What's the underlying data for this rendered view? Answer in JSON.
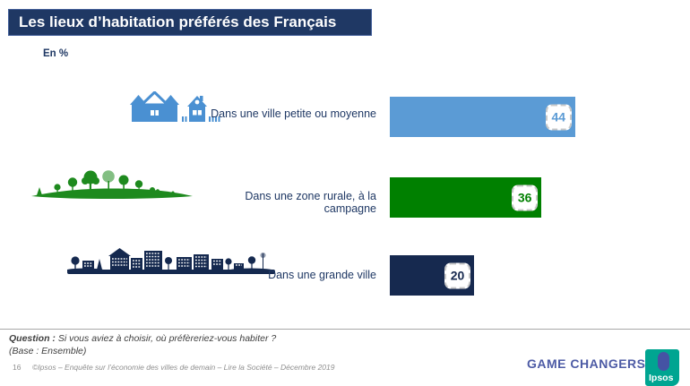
{
  "title": "Les lieux d’habitation préférés des Français",
  "unit_label": "En %",
  "chart_data": {
    "type": "bar",
    "orientation": "horizontal",
    "unit": "%",
    "categories": [
      "Dans une ville petite ou moyenne",
      "Dans une zone rurale, à la campagne",
      "Dans une grande ville"
    ],
    "values": [
      44,
      36,
      20
    ],
    "colors": [
      "#5B9BD5",
      "#008000",
      "#16294F"
    ],
    "icons": [
      "small-town-houses-icon",
      "countryside-trees-icon",
      "big-city-skyline-icon"
    ],
    "xlim": [
      0,
      100
    ],
    "value_labels_shown": true
  },
  "footer": {
    "question_label": "Question :",
    "question_text": " Si vous aviez à choisir, où préfèreriez-vous habiter ?",
    "base_text": "(Base : Ensemble)",
    "page_number": "16",
    "copyright": "©Ipsos – Enquête sur l’économie des villes de demain – Lire la Société – Décembre 2019",
    "brand_tagline": "GAME CHANGERS",
    "brand_logo_text": "Ipsos",
    "brand_colors": {
      "tagline": "#4D5BA5",
      "logo_teal": "#00A591",
      "logo_blue": "#4553A4"
    }
  }
}
